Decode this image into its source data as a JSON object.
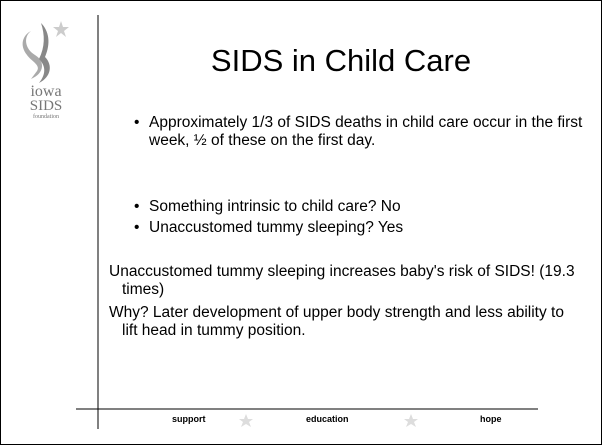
{
  "logo": {
    "line1": "iowa",
    "line2": "SIDS",
    "line3": "foundation"
  },
  "title": "SIDS in Child Care",
  "bullets": [
    "Approximately 1/3 of SIDS deaths in child care occur in the first week, ½ of these on the first day.",
    "Something intrinsic to child care? No",
    "Unaccustomed tummy sleeping? Yes"
  ],
  "paragraphs": [
    "Unaccustomed tummy sleeping increases baby's risk of SIDS!  (19.3 times)",
    "Why? Later development of upper body strength and less ability to lift head in tummy position."
  ],
  "footer": [
    "support",
    "education",
    "hope"
  ]
}
